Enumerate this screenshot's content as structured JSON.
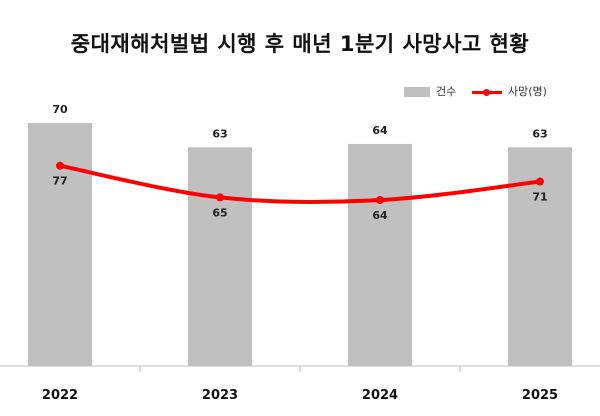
{
  "chart_data": {
    "type": "bar",
    "title": "중대재해처벌법 시행 후 매년 1분기 사망사고 현황",
    "categories": [
      "2022",
      "2023",
      "2024",
      "2025"
    ],
    "series": [
      {
        "name": "건수",
        "type": "bar",
        "color": "#c0c0c0",
        "values": [
          70,
          63,
          64,
          63
        ]
      },
      {
        "name": "사망(명)",
        "type": "line",
        "color": "#ff0000",
        "values": [
          77,
          65,
          64,
          71
        ]
      }
    ],
    "legend_position": "top-right",
    "grid": false
  }
}
